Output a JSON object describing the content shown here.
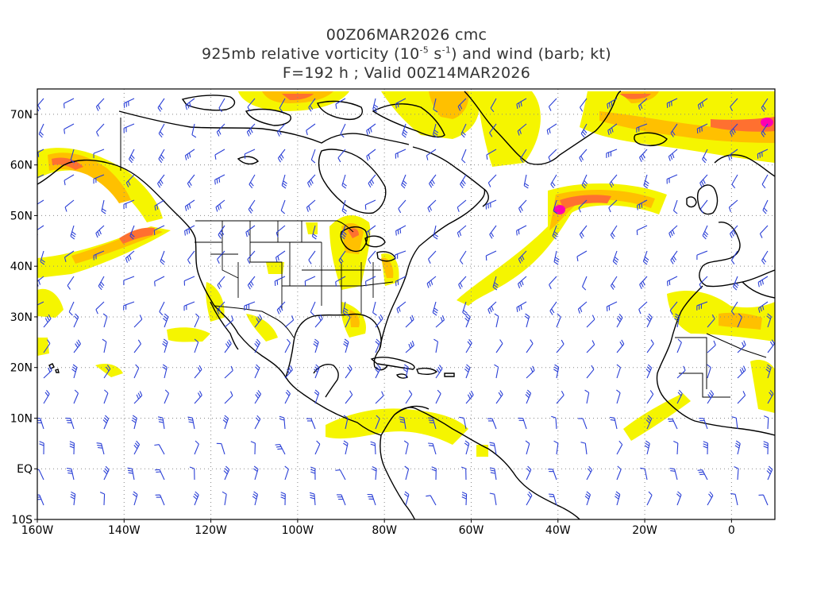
{
  "title": {
    "line1": "00Z06MAR2026 cmc",
    "line2_pre": "925mb relative vorticity (10",
    "line2_exp1": "-5",
    "line2_mid": " s",
    "line2_exp2": "-1",
    "line2_post": ") and wind (barb; kt)",
    "line3": "F=192 h ; Valid 00Z14MAR2026"
  },
  "map": {
    "lon_range": [
      -160,
      10
    ],
    "lat_range": [
      -10,
      75
    ],
    "lat_labels": [
      {
        "lat": 70,
        "text": "70N"
      },
      {
        "lat": 60,
        "text": "60N"
      },
      {
        "lat": 50,
        "text": "50N"
      },
      {
        "lat": 40,
        "text": "40N"
      },
      {
        "lat": 30,
        "text": "30N"
      },
      {
        "lat": 20,
        "text": "20N"
      },
      {
        "lat": 10,
        "text": "10N"
      },
      {
        "lat": 0,
        "text": "EQ"
      },
      {
        "lat": -10,
        "text": "10S"
      }
    ],
    "lon_labels": [
      {
        "lon": -160,
        "text": "160W"
      },
      {
        "lon": -140,
        "text": "140W"
      },
      {
        "lon": -120,
        "text": "120W"
      },
      {
        "lon": -100,
        "text": "100W"
      },
      {
        "lon": -80,
        "text": "80W"
      },
      {
        "lon": -60,
        "text": "60W"
      },
      {
        "lon": -40,
        "text": "40W"
      },
      {
        "lon": -20,
        "text": "20W"
      },
      {
        "lon": 0,
        "text": "0"
      }
    ],
    "grid_lines": "dotted",
    "colors": {
      "frame": "#000000",
      "coast": "#000000",
      "grid": "#888888",
      "barb": "#2a3fd6",
      "vort_low": "#f5f500",
      "vort_mid": "#ffc000",
      "vort_high": "#ff7030",
      "vort_max": "#ff00b0"
    }
  }
}
